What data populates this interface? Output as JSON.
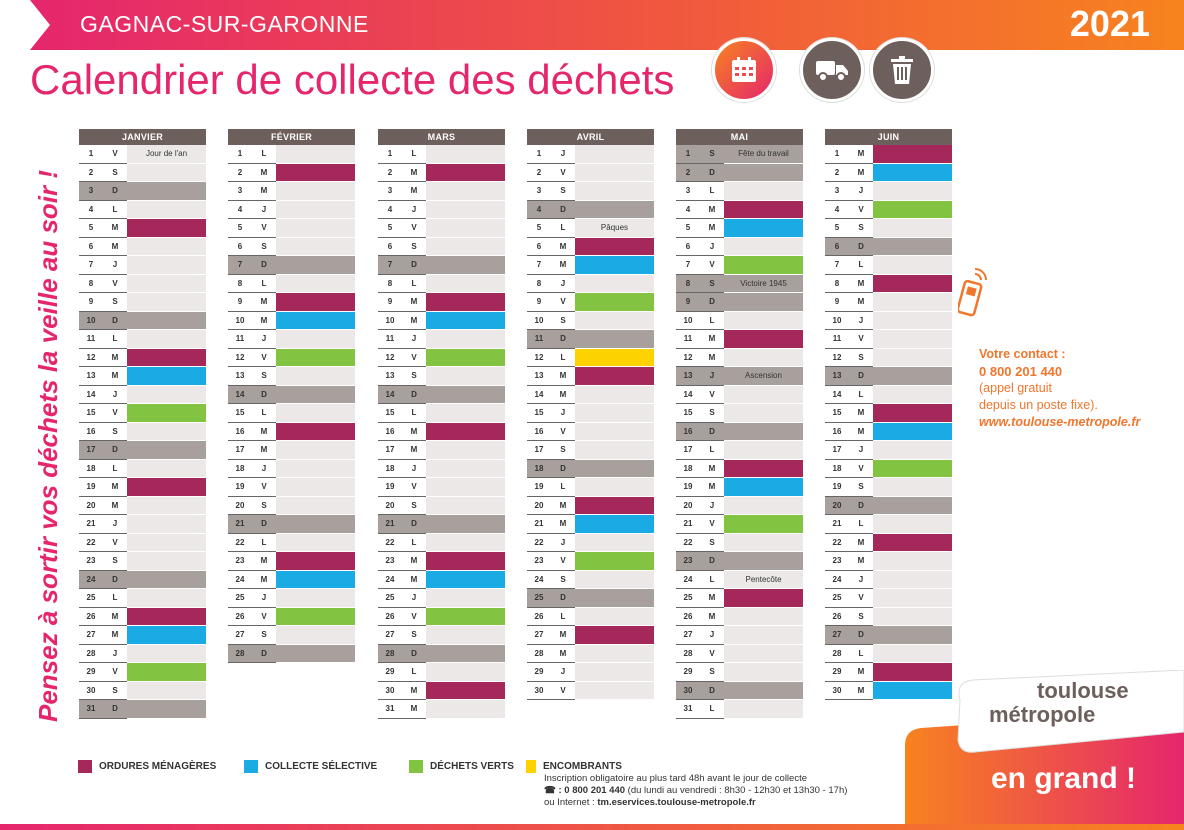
{
  "header": {
    "commune": "GAGNAC-SUR-GARONNE",
    "year": "2021",
    "title": "Calendrier de collecte des déchets"
  },
  "icons": {
    "calendar": "calendar-icon",
    "truck": "truck-icon",
    "bin": "trash-bin-icon"
  },
  "colors": {
    "ordures": "#a5285a",
    "selective": "#1aabe5",
    "verts": "#82c341",
    "encombrants": "#fcd300",
    "pink": "#e5266d",
    "orange": "#f7831f"
  },
  "side_text": "Pensez à sortir vos déchets la veille au soir !",
  "months": [
    {
      "name": "JANVIER",
      "days": [
        {
          "d": "1",
          "l": "V",
          "note": "Jour de l'an"
        },
        {
          "d": "2",
          "l": "S"
        },
        {
          "d": "3",
          "l": "D",
          "sun": true
        },
        {
          "d": "4",
          "l": "L"
        },
        {
          "d": "5",
          "l": "M",
          "c": "om"
        },
        {
          "d": "6",
          "l": "M"
        },
        {
          "d": "7",
          "l": "J"
        },
        {
          "d": "8",
          "l": "V"
        },
        {
          "d": "9",
          "l": "S"
        },
        {
          "d": "10",
          "l": "D",
          "sun": true
        },
        {
          "d": "11",
          "l": "L"
        },
        {
          "d": "12",
          "l": "M",
          "c": "om"
        },
        {
          "d": "13",
          "l": "M",
          "c": "cs"
        },
        {
          "d": "14",
          "l": "J"
        },
        {
          "d": "15",
          "l": "V",
          "c": "dv"
        },
        {
          "d": "16",
          "l": "S"
        },
        {
          "d": "17",
          "l": "D",
          "sun": true
        },
        {
          "d": "18",
          "l": "L"
        },
        {
          "d": "19",
          "l": "M",
          "c": "om"
        },
        {
          "d": "20",
          "l": "M"
        },
        {
          "d": "21",
          "l": "J"
        },
        {
          "d": "22",
          "l": "V"
        },
        {
          "d": "23",
          "l": "S"
        },
        {
          "d": "24",
          "l": "D",
          "sun": true
        },
        {
          "d": "25",
          "l": "L"
        },
        {
          "d": "26",
          "l": "M",
          "c": "om"
        },
        {
          "d": "27",
          "l": "M",
          "c": "cs"
        },
        {
          "d": "28",
          "l": "J"
        },
        {
          "d": "29",
          "l": "V",
          "c": "dv"
        },
        {
          "d": "30",
          "l": "S"
        },
        {
          "d": "31",
          "l": "D",
          "sun": true
        }
      ]
    },
    {
      "name": "FÉVRIER",
      "days": [
        {
          "d": "1",
          "l": "L"
        },
        {
          "d": "2",
          "l": "M",
          "c": "om"
        },
        {
          "d": "3",
          "l": "M"
        },
        {
          "d": "4",
          "l": "J"
        },
        {
          "d": "5",
          "l": "V"
        },
        {
          "d": "6",
          "l": "S"
        },
        {
          "d": "7",
          "l": "D",
          "sun": true
        },
        {
          "d": "8",
          "l": "L"
        },
        {
          "d": "9",
          "l": "M",
          "c": "om"
        },
        {
          "d": "10",
          "l": "M",
          "c": "cs"
        },
        {
          "d": "11",
          "l": "J"
        },
        {
          "d": "12",
          "l": "V",
          "c": "dv"
        },
        {
          "d": "13",
          "l": "S"
        },
        {
          "d": "14",
          "l": "D",
          "sun": true
        },
        {
          "d": "15",
          "l": "L"
        },
        {
          "d": "16",
          "l": "M",
          "c": "om"
        },
        {
          "d": "17",
          "l": "M"
        },
        {
          "d": "18",
          "l": "J"
        },
        {
          "d": "19",
          "l": "V"
        },
        {
          "d": "20",
          "l": "S"
        },
        {
          "d": "21",
          "l": "D",
          "sun": true
        },
        {
          "d": "22",
          "l": "L"
        },
        {
          "d": "23",
          "l": "M",
          "c": "om"
        },
        {
          "d": "24",
          "l": "M",
          "c": "cs"
        },
        {
          "d": "25",
          "l": "J"
        },
        {
          "d": "26",
          "l": "V",
          "c": "dv"
        },
        {
          "d": "27",
          "l": "S"
        },
        {
          "d": "28",
          "l": "D",
          "sun": true
        }
      ]
    },
    {
      "name": "MARS",
      "days": [
        {
          "d": "1",
          "l": "L"
        },
        {
          "d": "2",
          "l": "M",
          "c": "om"
        },
        {
          "d": "3",
          "l": "M"
        },
        {
          "d": "4",
          "l": "J"
        },
        {
          "d": "5",
          "l": "V"
        },
        {
          "d": "6",
          "l": "S"
        },
        {
          "d": "7",
          "l": "D",
          "sun": true
        },
        {
          "d": "8",
          "l": "L"
        },
        {
          "d": "9",
          "l": "M",
          "c": "om"
        },
        {
          "d": "10",
          "l": "M",
          "c": "cs"
        },
        {
          "d": "11",
          "l": "J"
        },
        {
          "d": "12",
          "l": "V",
          "c": "dv"
        },
        {
          "d": "13",
          "l": "S"
        },
        {
          "d": "14",
          "l": "D",
          "sun": true
        },
        {
          "d": "15",
          "l": "L"
        },
        {
          "d": "16",
          "l": "M",
          "c": "om"
        },
        {
          "d": "17",
          "l": "M"
        },
        {
          "d": "18",
          "l": "J"
        },
        {
          "d": "19",
          "l": "V"
        },
        {
          "d": "20",
          "l": "S"
        },
        {
          "d": "21",
          "l": "D",
          "sun": true
        },
        {
          "d": "22",
          "l": "L"
        },
        {
          "d": "23",
          "l": "M",
          "c": "om"
        },
        {
          "d": "24",
          "l": "M",
          "c": "cs"
        },
        {
          "d": "25",
          "l": "J"
        },
        {
          "d": "26",
          "l": "V",
          "c": "dv"
        },
        {
          "d": "27",
          "l": "S"
        },
        {
          "d": "28",
          "l": "D",
          "sun": true
        },
        {
          "d": "29",
          "l": "L"
        },
        {
          "d": "30",
          "l": "M",
          "c": "om"
        },
        {
          "d": "31",
          "l": "M"
        }
      ]
    },
    {
      "name": "AVRIL",
      "days": [
        {
          "d": "1",
          "l": "J"
        },
        {
          "d": "2",
          "l": "V"
        },
        {
          "d": "3",
          "l": "S"
        },
        {
          "d": "4",
          "l": "D",
          "sun": true
        },
        {
          "d": "5",
          "l": "L",
          "note": "Pâques"
        },
        {
          "d": "6",
          "l": "M",
          "c": "om"
        },
        {
          "d": "7",
          "l": "M",
          "c": "cs"
        },
        {
          "d": "8",
          "l": "J"
        },
        {
          "d": "9",
          "l": "V",
          "c": "dv"
        },
        {
          "d": "10",
          "l": "S"
        },
        {
          "d": "11",
          "l": "D",
          "sun": true
        },
        {
          "d": "12",
          "l": "L",
          "c": "en"
        },
        {
          "d": "13",
          "l": "M",
          "c": "om"
        },
        {
          "d": "14",
          "l": "M"
        },
        {
          "d": "15",
          "l": "J"
        },
        {
          "d": "16",
          "l": "V"
        },
        {
          "d": "17",
          "l": "S"
        },
        {
          "d": "18",
          "l": "D",
          "sun": true
        },
        {
          "d": "19",
          "l": "L"
        },
        {
          "d": "20",
          "l": "M",
          "c": "om"
        },
        {
          "d": "21",
          "l": "M",
          "c": "cs"
        },
        {
          "d": "22",
          "l": "J"
        },
        {
          "d": "23",
          "l": "V",
          "c": "dv"
        },
        {
          "d": "24",
          "l": "S"
        },
        {
          "d": "25",
          "l": "D",
          "sun": true
        },
        {
          "d": "26",
          "l": "L"
        },
        {
          "d": "27",
          "l": "M",
          "c": "om"
        },
        {
          "d": "28",
          "l": "M"
        },
        {
          "d": "29",
          "l": "J"
        },
        {
          "d": "30",
          "l": "V"
        }
      ]
    },
    {
      "name": "MAI",
      "days": [
        {
          "d": "1",
          "l": "S",
          "note": "Fête du travail",
          "sun": true
        },
        {
          "d": "2",
          "l": "D",
          "sun": true
        },
        {
          "d": "3",
          "l": "L"
        },
        {
          "d": "4",
          "l": "M",
          "c": "om"
        },
        {
          "d": "5",
          "l": "M",
          "c": "cs"
        },
        {
          "d": "6",
          "l": "J"
        },
        {
          "d": "7",
          "l": "V",
          "c": "dv"
        },
        {
          "d": "8",
          "l": "S",
          "note": "Victoire 1945",
          "sun": true
        },
        {
          "d": "9",
          "l": "D",
          "sun": true
        },
        {
          "d": "10",
          "l": "L"
        },
        {
          "d": "11",
          "l": "M",
          "c": "om"
        },
        {
          "d": "12",
          "l": "M"
        },
        {
          "d": "13",
          "l": "J",
          "note": "Ascension",
          "sun": true
        },
        {
          "d": "14",
          "l": "V"
        },
        {
          "d": "15",
          "l": "S"
        },
        {
          "d": "16",
          "l": "D",
          "sun": true
        },
        {
          "d": "17",
          "l": "L"
        },
        {
          "d": "18",
          "l": "M",
          "c": "om"
        },
        {
          "d": "19",
          "l": "M",
          "c": "cs"
        },
        {
          "d": "20",
          "l": "J"
        },
        {
          "d": "21",
          "l": "V",
          "c": "dv"
        },
        {
          "d": "22",
          "l": "S"
        },
        {
          "d": "23",
          "l": "D",
          "sun": true
        },
        {
          "d": "24",
          "l": "L",
          "note": "Pentecôte"
        },
        {
          "d": "25",
          "l": "M",
          "c": "om"
        },
        {
          "d": "26",
          "l": "M"
        },
        {
          "d": "27",
          "l": "J"
        },
        {
          "d": "28",
          "l": "V"
        },
        {
          "d": "29",
          "l": "S"
        },
        {
          "d": "30",
          "l": "D",
          "sun": true
        },
        {
          "d": "31",
          "l": "L"
        }
      ]
    },
    {
      "name": "JUIN",
      "days": [
        {
          "d": "1",
          "l": "M",
          "c": "om"
        },
        {
          "d": "2",
          "l": "M",
          "c": "cs"
        },
        {
          "d": "3",
          "l": "J"
        },
        {
          "d": "4",
          "l": "V",
          "c": "dv"
        },
        {
          "d": "5",
          "l": "S"
        },
        {
          "d": "6",
          "l": "D",
          "sun": true
        },
        {
          "d": "7",
          "l": "L"
        },
        {
          "d": "8",
          "l": "M",
          "c": "om"
        },
        {
          "d": "9",
          "l": "M"
        },
        {
          "d": "10",
          "l": "J"
        },
        {
          "d": "11",
          "l": "V"
        },
        {
          "d": "12",
          "l": "S"
        },
        {
          "d": "13",
          "l": "D",
          "sun": true
        },
        {
          "d": "14",
          "l": "L"
        },
        {
          "d": "15",
          "l": "M",
          "c": "om"
        },
        {
          "d": "16",
          "l": "M",
          "c": "cs"
        },
        {
          "d": "17",
          "l": "J"
        },
        {
          "d": "18",
          "l": "V",
          "c": "dv"
        },
        {
          "d": "19",
          "l": "S"
        },
        {
          "d": "20",
          "l": "D",
          "sun": true
        },
        {
          "d": "21",
          "l": "L"
        },
        {
          "d": "22",
          "l": "M",
          "c": "om"
        },
        {
          "d": "23",
          "l": "M"
        },
        {
          "d": "24",
          "l": "J"
        },
        {
          "d": "25",
          "l": "V"
        },
        {
          "d": "26",
          "l": "S"
        },
        {
          "d": "27",
          "l": "D",
          "sun": true
        },
        {
          "d": "28",
          "l": "L"
        },
        {
          "d": "29",
          "l": "M",
          "c": "om"
        },
        {
          "d": "30",
          "l": "M",
          "c": "cs"
        }
      ]
    }
  ],
  "contact": {
    "label": "Votre contact :",
    "phone": "0 800 201 440",
    "line1": "(appel gratuit",
    "line2": "depuis un poste fixe).",
    "website": "www.toulouse-metropole.fr"
  },
  "legend": {
    "ordures": "ORDURES MÉNAGÈRES",
    "selective": "COLLECTE SÉLECTIVE",
    "verts": "DÉCHETS VERTS",
    "encombrants": "ENCOMBRANTS",
    "enc_line1": "Inscription obligatoire au plus tard 48h avant le jour de collecte",
    "enc_phone_prefix": "☎ : ",
    "enc_phone": "0 800 201 440",
    "enc_phone_suffix": " (du lundi au vendredi : 8h30 - 12h30 et 13h30 - 17h)",
    "enc_web_prefix": "ou Internet : ",
    "enc_web": "tm.eservices.toulouse-metropole.fr"
  },
  "brand": {
    "line1": "toulouse",
    "line2": "métropole",
    "slogan": "en grand !"
  }
}
